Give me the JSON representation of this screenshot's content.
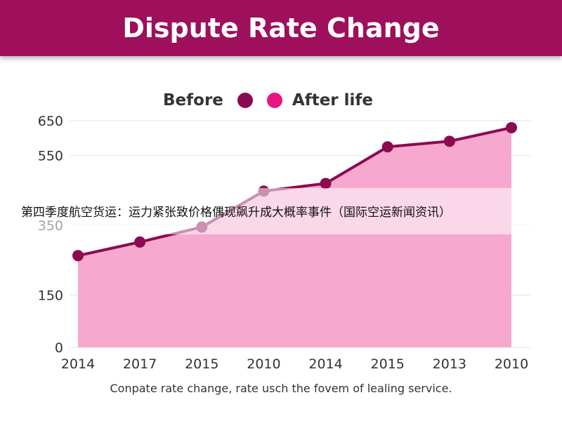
{
  "header": {
    "title": "Dispute Rate Change"
  },
  "legend": {
    "before_label": "Before",
    "after_label": "After life",
    "before_color": "#8b0a50",
    "after_color": "#e8157f"
  },
  "overlay_caption": "第四季度航空货运：运力紧张致价格偶现飙升成大概率事件（国际空运新闻资讯）",
  "footer": {
    "caption": "Conpate rate change, rate usch the fovem of lealing service."
  },
  "colors": {
    "header_bg": "#9e0f5c",
    "area_fill": "#f7a8cf",
    "line": "#8b0a50",
    "grid": "#e3e3e3"
  },
  "chart_data": {
    "type": "area",
    "title": "Dispute Rate Change",
    "xlabel": "",
    "ylabel": "",
    "ylim": [
      0,
      650
    ],
    "y_ticks": [
      0,
      150,
      350,
      550,
      650
    ],
    "categories": [
      "2014",
      "2017",
      "2015",
      "2010",
      "2014",
      "2015",
      "2013",
      "2010"
    ],
    "series": [
      {
        "name": "Before",
        "values": [
          263,
          302,
          345,
          448,
          470,
          575,
          591,
          630
        ]
      }
    ],
    "grid": true,
    "legend_position": "top"
  }
}
